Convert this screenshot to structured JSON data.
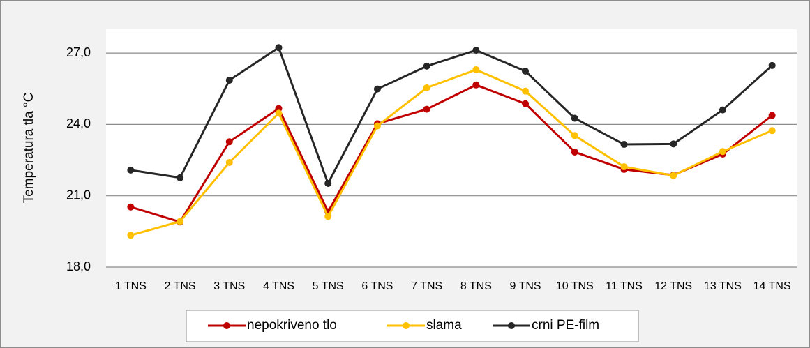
{
  "chart_data": {
    "type": "line",
    "ylabel": "Temperatura  tla °C",
    "categories": [
      "1 TNS",
      "2 TNS",
      "3 TNS",
      "4 TNS",
      "5 TNS",
      "6 TNS",
      "7 TNS",
      "8 TNS",
      "9 TNS",
      "10 TNS",
      "11 TNS",
      "12 TNS",
      "13 TNS",
      "14 TNS"
    ],
    "series": [
      {
        "name": "nepokriveno tlo",
        "color": "#c00000",
        "values": [
          20.53,
          19.9,
          23.27,
          24.67,
          20.33,
          24.03,
          24.64,
          25.66,
          24.87,
          22.84,
          22.11,
          21.87,
          22.75,
          24.38
        ]
      },
      {
        "name": "slama",
        "color": "#ffc000",
        "values": [
          19.34,
          19.92,
          22.4,
          24.47,
          20.13,
          23.94,
          25.54,
          26.3,
          25.4,
          23.53,
          22.22,
          21.85,
          22.86,
          23.74
        ]
      },
      {
        "name": "crni PE-film",
        "color": "#262626",
        "values": [
          22.08,
          21.76,
          25.86,
          27.23,
          21.52,
          25.49,
          26.45,
          27.12,
          26.24,
          24.26,
          23.16,
          23.18,
          24.61,
          26.48
        ]
      }
    ],
    "ylim": [
      18,
      28
    ],
    "yticks": [
      {
        "value": 18,
        "label": "18,0"
      },
      {
        "value": 21,
        "label": "21,0"
      },
      {
        "value": 24,
        "label": "24,0"
      },
      {
        "value": 27,
        "label": "27,0"
      }
    ],
    "grid": true,
    "legend": "bottom"
  }
}
